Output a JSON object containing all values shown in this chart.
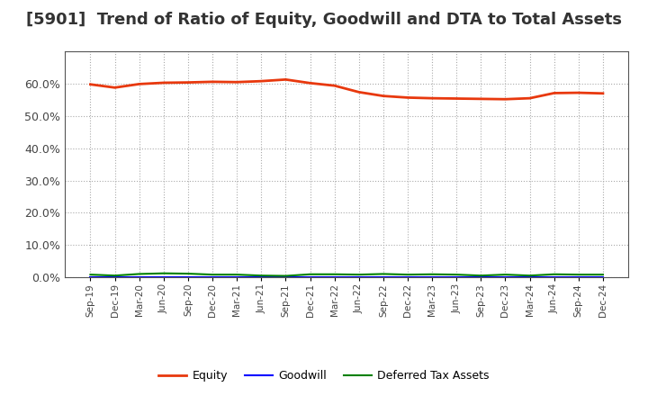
{
  "title": "[5901]  Trend of Ratio of Equity, Goodwill and DTA to Total Assets",
  "x_labels": [
    "Sep-19",
    "Dec-19",
    "Mar-20",
    "Jun-20",
    "Sep-20",
    "Dec-20",
    "Mar-21",
    "Jun-21",
    "Sep-21",
    "Dec-21",
    "Mar-22",
    "Jun-22",
    "Sep-22",
    "Dec-22",
    "Mar-23",
    "Jun-23",
    "Sep-23",
    "Dec-23",
    "Mar-24",
    "Jun-24",
    "Sep-24",
    "Dec-24"
  ],
  "equity": [
    59.8,
    58.8,
    59.9,
    60.3,
    60.4,
    60.6,
    60.5,
    60.8,
    61.3,
    60.2,
    59.4,
    57.4,
    56.2,
    55.7,
    55.5,
    55.4,
    55.3,
    55.2,
    55.5,
    57.1,
    57.2,
    57.0
  ],
  "goodwill": [
    0.05,
    0.05,
    0.05,
    0.05,
    0.05,
    0.05,
    0.05,
    0.05,
    0.05,
    0.05,
    0.05,
    0.05,
    0.05,
    0.05,
    0.05,
    0.05,
    0.05,
    0.05,
    0.05,
    0.05,
    0.05,
    0.05
  ],
  "dta": [
    0.8,
    0.5,
    1.0,
    1.2,
    1.1,
    0.8,
    0.8,
    0.5,
    0.4,
    0.9,
    0.9,
    0.8,
    1.0,
    0.8,
    0.9,
    0.8,
    0.5,
    0.8,
    0.5,
    0.9,
    0.8,
    0.8
  ],
  "equity_color": "#e8380d",
  "goodwill_color": "#0000ff",
  "dta_color": "#008000",
  "ylim_min": 0,
  "ylim_max": 70,
  "ytick_vals": [
    0,
    10,
    20,
    30,
    40,
    50,
    60
  ],
  "background_color": "#ffffff",
  "grid_color": "#aaaaaa",
  "legend_labels": [
    "Equity",
    "Goodwill",
    "Deferred Tax Assets"
  ],
  "legend_colors": [
    "#e8380d",
    "#0000ff",
    "#008000"
  ]
}
